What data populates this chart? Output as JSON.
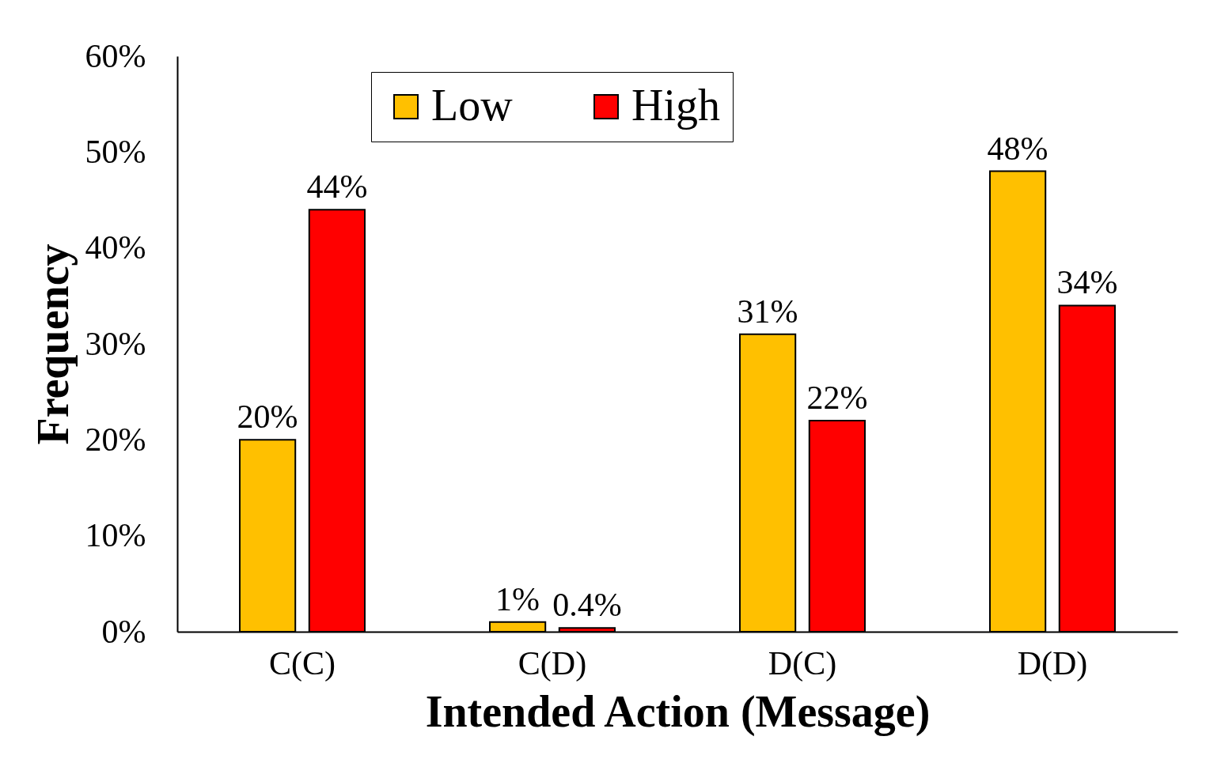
{
  "chart_data": {
    "type": "bar",
    "xlabel": "Intended Action (Message)",
    "ylabel": "Frequency",
    "categories": [
      "C(C)",
      "C(D)",
      "D(C)",
      "D(D)"
    ],
    "series": [
      {
        "name": "Low",
        "color": "#ffc000",
        "values": [
          20,
          1,
          31,
          48
        ],
        "value_labels": [
          "20%",
          "1%",
          "31%",
          "48%"
        ]
      },
      {
        "name": "High",
        "color": "#ff0000",
        "values": [
          44,
          0.4,
          22,
          34
        ],
        "value_labels": [
          "44%",
          "0.4%",
          "22%",
          "34%"
        ]
      }
    ],
    "ylim": [
      0,
      60
    ],
    "yticks": [
      {
        "value": 0,
        "label": "0%"
      },
      {
        "value": 10,
        "label": "10%"
      },
      {
        "value": 20,
        "label": "20%"
      },
      {
        "value": 30,
        "label": "30%"
      },
      {
        "value": 40,
        "label": "40%"
      },
      {
        "value": 50,
        "label": "50%"
      },
      {
        "value": 60,
        "label": "60%"
      }
    ],
    "grid": false,
    "legend": "top"
  }
}
